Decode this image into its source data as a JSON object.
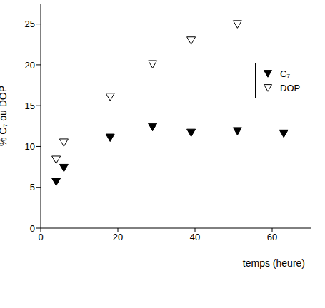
{
  "chart_data": {
    "type": "scatter",
    "x_label": "temps (heure)",
    "y_label": "% C₇ ou DOP",
    "xlim": [
      0,
      70
    ],
    "xticks": [
      0,
      20,
      40,
      60
    ],
    "ylim": [
      0,
      27.5
    ],
    "yticks": [
      0,
      5,
      10,
      15,
      20,
      25
    ],
    "grid": false,
    "legend": "right",
    "series": [
      {
        "name": "C₇",
        "color": "#000000",
        "marker": "triangle-down-filled",
        "x": [
          4,
          6,
          18,
          29,
          39,
          51,
          63
        ],
        "values": [
          5.7,
          7.4,
          11.1,
          12.4,
          11.7,
          11.9,
          11.6
        ]
      },
      {
        "name": "DOP",
        "color": "#000000",
        "marker": "triangle-down-open",
        "x": [
          4,
          6,
          18,
          29,
          39,
          51
        ],
        "values": [
          8.4,
          10.5,
          16.1,
          20.1,
          23.0,
          25.0
        ]
      }
    ]
  }
}
